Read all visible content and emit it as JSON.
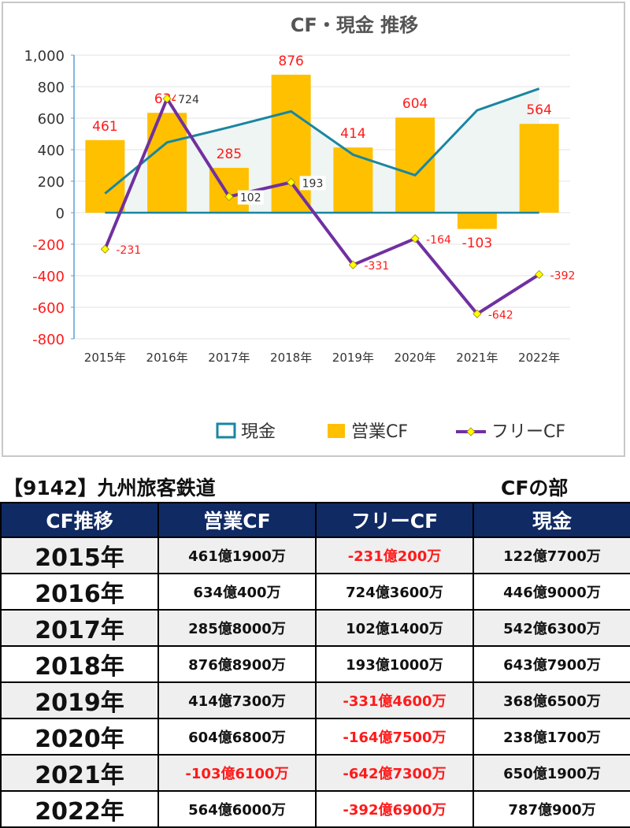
{
  "chart_data": {
    "type": "bar",
    "title": "CF・現金 推移",
    "categories": [
      "2015年",
      "2016年",
      "2017年",
      "2018年",
      "2019年",
      "2020年",
      "2021年",
      "2022年"
    ],
    "ylim": [
      -800,
      1000
    ],
    "yticks": [
      "1,000",
      "800",
      "600",
      "400",
      "200",
      "0",
      "-200",
      "-400",
      "-600",
      "-800"
    ],
    "ytick_values": [
      1000,
      800,
      600,
      400,
      200,
      0,
      -200,
      -400,
      -600,
      -800
    ],
    "grid": true,
    "legend_position": "bottom",
    "series": [
      {
        "name": "現金",
        "kind": "area",
        "color": "#1a86a0",
        "fill": "#eef5f3",
        "values": [
          122,
          446,
          542,
          643,
          368,
          238,
          650,
          787
        ]
      },
      {
        "name": "営業CF",
        "kind": "bar",
        "color": "#ffc000",
        "values": [
          461,
          634,
          285,
          876,
          414,
          604,
          -103,
          564
        ],
        "labels": [
          "461",
          "634",
          "285",
          "876",
          "414",
          "604",
          "-103",
          "564"
        ]
      },
      {
        "name": "フリーCF",
        "kind": "line",
        "color": "#7030a0",
        "marker": "#ffff00",
        "values": [
          -231,
          724,
          102,
          193,
          -331,
          -164,
          -642,
          -392
        ],
        "labels": [
          "-231",
          "724",
          "102",
          "193",
          "-331",
          "-164",
          "-642",
          "-392"
        ]
      }
    ]
  },
  "table": {
    "company": "【9142】九州旅客鉄道",
    "section": "CFの部",
    "headers": [
      "CF推移",
      "営業CF",
      "フリーCF",
      "現金"
    ],
    "rows": [
      {
        "year": "2015年",
        "op": "461億1900万",
        "free": "-231億200万",
        "cash": "122億7700万"
      },
      {
        "year": "2016年",
        "op": "634億400万",
        "free": "724億3600万",
        "cash": "446億9000万"
      },
      {
        "year": "2017年",
        "op": "285億8000万",
        "free": "102億1400万",
        "cash": "542億6300万"
      },
      {
        "year": "2018年",
        "op": "876億8900万",
        "free": "193億1000万",
        "cash": "643億7900万"
      },
      {
        "year": "2019年",
        "op": "414億7300万",
        "free": "-331億4600万",
        "cash": "368億6500万"
      },
      {
        "year": "2020年",
        "op": "604億6800万",
        "free": "-164億7500万",
        "cash": "238億1700万"
      },
      {
        "year": "2021年",
        "op": "-103億6100万",
        "free": "-642億7300万",
        "cash": "650億1900万"
      },
      {
        "year": "2022年",
        "op": "564億6000万",
        "free": "-392億6900万",
        "cash": "787億900万"
      }
    ]
  }
}
